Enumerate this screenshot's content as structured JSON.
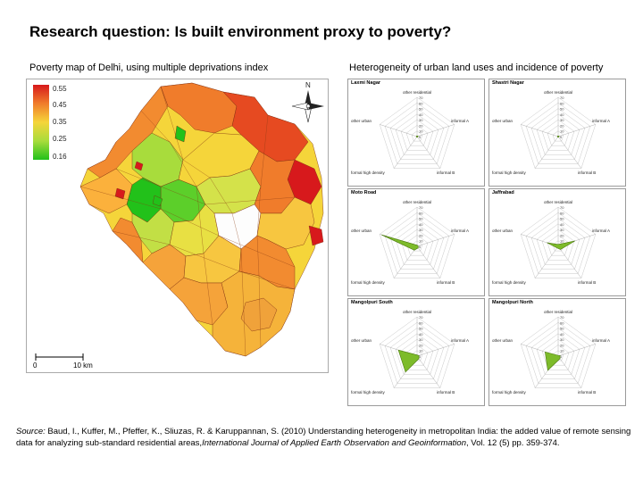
{
  "title": "Research question: Is built environment proxy to poverty?",
  "left_heading": "Poverty map of Delhi, using multiple deprivations index",
  "right_heading": "Heterogeneity of urban land uses and incidence of poverty",
  "map": {
    "legend_values": [
      "0.55",
      "0.45",
      "0.35",
      "0.25",
      "0.16"
    ],
    "legend_colors": [
      "#d7191c",
      "#f07c2b",
      "#f5d53a",
      "#a8dc3c",
      "#22c11a"
    ],
    "north_label": "N",
    "scalebar": {
      "start": "0",
      "end": "10 km"
    }
  },
  "radar": {
    "axis_labels": {
      "top": "other residential",
      "right": "informal A",
      "bottom_right": "informal B",
      "bottom_left": "formal high density",
      "left": "other urban"
    },
    "ring_labels": [
      "70",
      "60",
      "50",
      "40",
      "30",
      "20",
      "10",
      "0"
    ],
    "cells": [
      {
        "name": "Laxmi Nagar",
        "values": [
          0.02,
          0.03,
          0.02,
          0.02,
          0.02
        ]
      },
      {
        "name": "Shastri Nagar",
        "values": [
          0.02,
          0.03,
          0.02,
          0.02,
          0.02
        ]
      },
      {
        "name": "Moto Road",
        "values": [
          0.03,
          0.03,
          0.05,
          0.12,
          0.95
        ]
      },
      {
        "name": "Jaffrabad",
        "values": [
          0.05,
          0.45,
          0.1,
          0.05,
          0.3
        ]
      },
      {
        "name": "Mangolpuri South",
        "values": [
          0.03,
          0.05,
          0.08,
          0.5,
          0.5
        ]
      },
      {
        "name": "Mangolpuri North",
        "values": [
          0.02,
          0.05,
          0.08,
          0.45,
          0.35
        ]
      }
    ],
    "fill_color": "#7dbb2a"
  },
  "source": {
    "label": "Source:",
    "authors": "Baud, I., Kuffer, M., Pfeffer, K., Sliuzas, R. & Karuppannan, S. (2010) Understanding heterogeneity in metropolitan India: the added value of remote sensing data for analyzing sub-standard residential areas,",
    "journal": "International Journal of Applied Earth Observation and Geoinformation",
    "volume": ", Vol. 12 (5) pp. 359-374."
  }
}
